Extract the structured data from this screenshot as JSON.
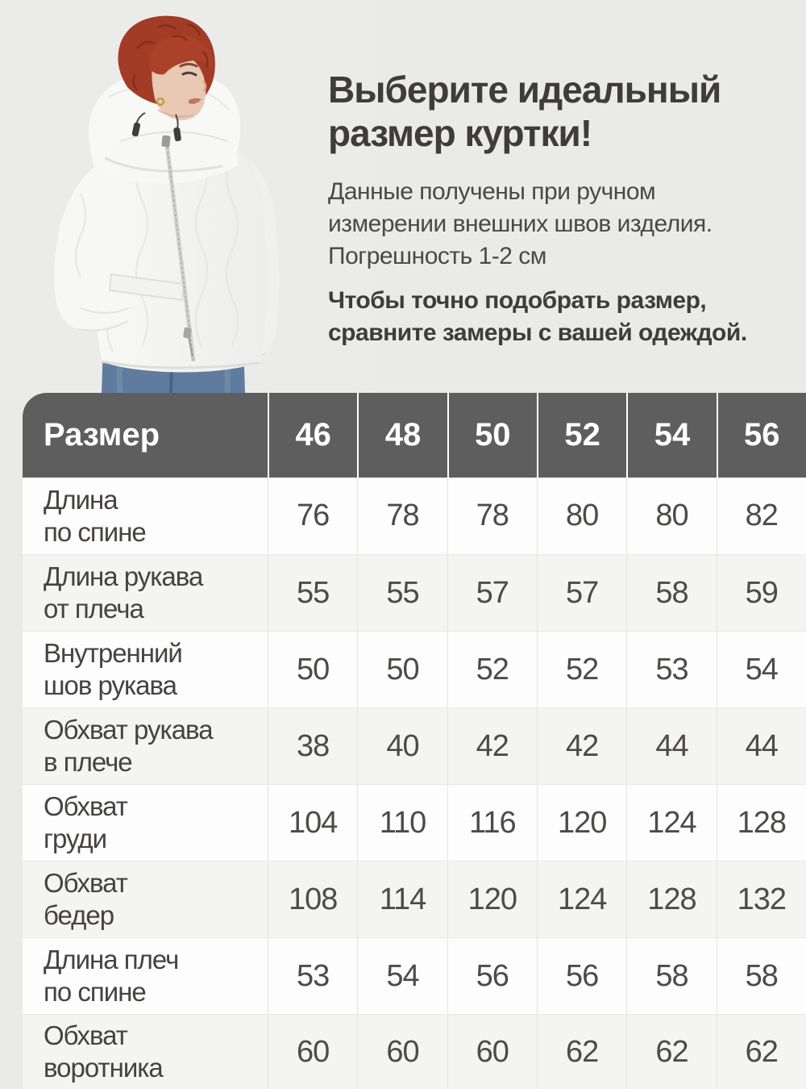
{
  "intro": {
    "title_lines": [
      "Выберите идеальный",
      "размер куртки!"
    ],
    "description_lines": [
      "Данные получены при ручном",
      "измерении внешних швов изделия.",
      "Погрешность 1-2 см"
    ],
    "note_lines": [
      "Чтобы точно подобрать размер,",
      "сравните замеры с вашей одеждой."
    ]
  },
  "photo": {
    "description": "Женщина с короткими рыжими волосами в белой стёганой куртке с капюшоном и синих джинсах"
  },
  "size_table": {
    "header_label": "Размер",
    "sizes": [
      "46",
      "48",
      "50",
      "52",
      "54",
      "56"
    ],
    "rows": [
      {
        "label_lines": [
          "Длина",
          "по спине"
        ],
        "values": [
          "76",
          "78",
          "78",
          "80",
          "80",
          "82"
        ]
      },
      {
        "label_lines": [
          "Длина рукава",
          "от плеча"
        ],
        "values": [
          "55",
          "55",
          "57",
          "57",
          "58",
          "59"
        ]
      },
      {
        "label_lines": [
          "Внутренний",
          "шов рукава"
        ],
        "values": [
          "50",
          "50",
          "52",
          "52",
          "53",
          "54"
        ]
      },
      {
        "label_lines": [
          "Обхват рукава",
          "в плече"
        ],
        "values": [
          "38",
          "40",
          "42",
          "42",
          "44",
          "44"
        ]
      },
      {
        "label_lines": [
          "Обхват",
          "груди"
        ],
        "values": [
          "104",
          "110",
          "116",
          "120",
          "124",
          "128"
        ]
      },
      {
        "label_lines": [
          "Обхват",
          "бедер"
        ],
        "values": [
          "108",
          "114",
          "120",
          "124",
          "128",
          "132"
        ]
      },
      {
        "label_lines": [
          "Длина плеч",
          "по спине"
        ],
        "values": [
          "53",
          "54",
          "56",
          "56",
          "58",
          "58"
        ]
      },
      {
        "label_lines": [
          "Обхват",
          "воротника"
        ],
        "values": [
          "60",
          "60",
          "60",
          "62",
          "62",
          "62"
        ]
      }
    ]
  },
  "colors": {
    "page_background": "#eaeae8",
    "table_header_background": "#5e5e5e",
    "table_header_text": "#ffffff",
    "row_background": "#fdfdfd",
    "row_background_alt": "#f4f4f2",
    "text_primary": "#3e3d3a",
    "text_secondary": "#4a4947",
    "hair": "#a23c26",
    "jacket": "#f5f5f3",
    "jeans": "#5f7c9e"
  }
}
